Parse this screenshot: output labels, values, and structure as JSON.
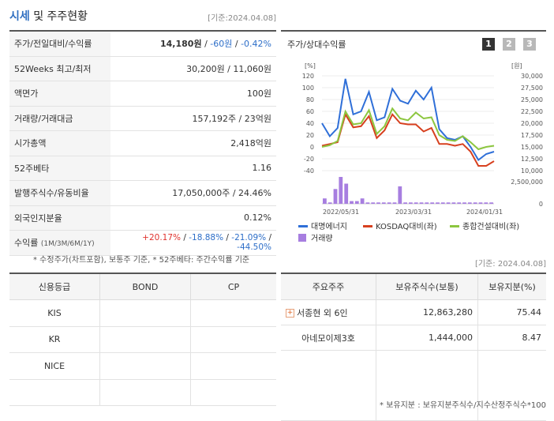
{
  "header": {
    "title_bold": "시세",
    "title_rest": " 및 주주현황",
    "date": "[기준:2024.04.08]"
  },
  "info_rows": [
    {
      "label": "주가/전일대비/수익률",
      "price": "14,180원",
      "sep1": " / ",
      "change": "-60원",
      "sep2": " / ",
      "rate": "-0.42%"
    },
    {
      "label": "52Weeks 최고/최저",
      "value": "30,200원 / 11,060원"
    },
    {
      "label": "액면가",
      "value": "100원"
    },
    {
      "label": "거래량/거래대금",
      "value": "157,192주 / 23억원"
    },
    {
      "label": "시가총액",
      "value": "2,418억원"
    },
    {
      "label": "52주베타",
      "value": "1.16"
    },
    {
      "label": "발행주식수/유동비율",
      "value": "17,050,000주 / 24.46%"
    },
    {
      "label": "외국인지분율",
      "value": "0.12%"
    },
    {
      "label": "수익률",
      "label_small": "(1M/3M/6M/1Y)",
      "r1": "+20.17%",
      "r2": "-18.88%",
      "r3": "-21.09%",
      "r4": "-44.50%",
      "sep": " / "
    }
  ],
  "note1": "* 수정주가(차트포함), 보통주 기준, * 52주베타: 주간수익률 기준",
  "chart_panel": {
    "title": "주가/상대수익률",
    "buttons": [
      "1",
      "2",
      "3"
    ]
  },
  "chart_data": {
    "type": "line",
    "left_unit": "[%]",
    "right_unit": "[원]",
    "left_ticks": [
      120,
      100,
      80,
      60,
      40,
      20,
      0,
      -20,
      -40
    ],
    "right_ticks": [
      "30,000",
      "27,500",
      "25,000",
      "22,500",
      "20,000",
      "17,500",
      "15,000",
      "12,500",
      "10,000"
    ],
    "vol_tick": "2,500,000",
    "vol_zero": "0",
    "x_ticks": [
      "2022/05/31",
      "2023/03/31",
      "2024/01/31"
    ],
    "ylim": [
      -40,
      120
    ],
    "series": [
      {
        "name": "대명에너지",
        "color": "#2f6fd8",
        "values": [
          40,
          18,
          32,
          115,
          55,
          60,
          93,
          45,
          50,
          98,
          78,
          73,
          95,
          80,
          100,
          30,
          15,
          12,
          18,
          0,
          -22,
          -12,
          -8
        ]
      },
      {
        "name": "KOSDAQ대비(좌)",
        "color": "#d7401f",
        "values": [
          2,
          5,
          8,
          55,
          33,
          35,
          52,
          15,
          28,
          55,
          40,
          38,
          38,
          26,
          32,
          5,
          5,
          2,
          5,
          -8,
          -32,
          -32,
          -24
        ]
      },
      {
        "name": "종합건설대비(좌)",
        "color": "#8cc63f",
        "values": [
          0,
          3,
          10,
          60,
          38,
          40,
          62,
          22,
          35,
          65,
          48,
          45,
          58,
          48,
          50,
          20,
          12,
          10,
          18,
          8,
          -4,
          0,
          2
        ]
      }
    ],
    "volume_name": "거래량",
    "volume_color": "#a77ee0",
    "volume": [
      0.2,
      0.05,
      0.55,
      1,
      0.75,
      0.1,
      0.1,
      0.2,
      0.05,
      0.05,
      0.05,
      0.05,
      0.05,
      0.05,
      0.65,
      0.05,
      0.05,
      0.05,
      0.05,
      0.05,
      0.05,
      0.05,
      0.05,
      0.05,
      0.05,
      0.05,
      0.05,
      0.05,
      0.05,
      0.05,
      0.05,
      0.05
    ]
  },
  "date2": "[기준: 2024.04.08]",
  "credit": {
    "headers": [
      "신용등급",
      "BOND",
      "CP"
    ],
    "rows": [
      [
        "KIS",
        "",
        ""
      ],
      [
        "KR",
        "",
        ""
      ],
      [
        "NICE",
        "",
        ""
      ],
      [
        "",
        "",
        ""
      ]
    ]
  },
  "holders": {
    "headers": [
      "주요주주",
      "보유주식수(보통)",
      "보유지분(%)"
    ],
    "rows": [
      {
        "name": "서종현 외 6인",
        "shares": "12,863,280",
        "pct": "75.44",
        "expand": "+"
      },
      {
        "name": "아네모이제3호",
        "shares": "1,444,000",
        "pct": "8.47",
        "expand": ""
      }
    ]
  },
  "note2": "* 보유지분 : 보유지분주식수/지수산정주식수*100"
}
